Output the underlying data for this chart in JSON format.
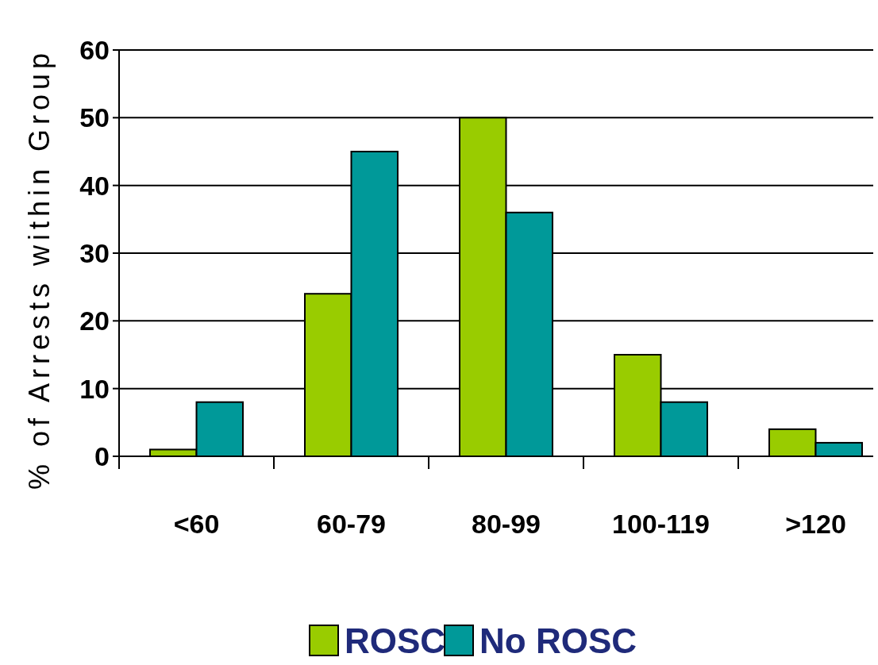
{
  "chart_data": {
    "type": "bar",
    "ylabel": "% of Arrests within Group",
    "categories": [
      "<60",
      "60-79",
      "80-99",
      "100-119",
      ">120"
    ],
    "series": [
      {
        "name": "ROSC",
        "color": "#99cc00",
        "values": [
          1,
          24,
          50,
          15,
          4
        ]
      },
      {
        "name": "No ROSC",
        "color": "#009999",
        "values": [
          8,
          45,
          36,
          8,
          2
        ]
      }
    ],
    "ylim": [
      0,
      60
    ],
    "yticks": [
      0,
      10,
      20,
      30,
      40,
      50,
      60
    ],
    "grid": "y",
    "legend": "bottom"
  }
}
